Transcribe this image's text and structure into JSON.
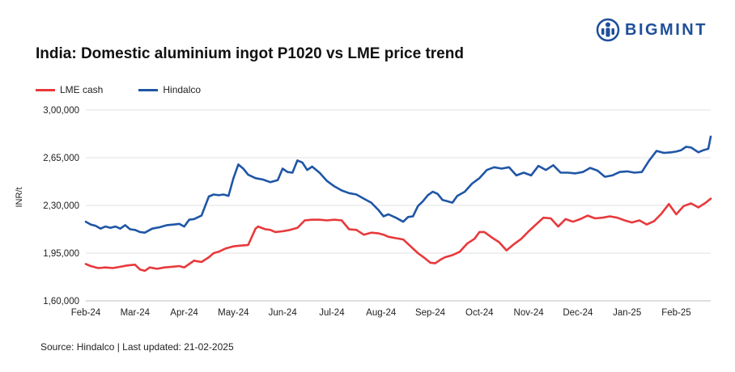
{
  "title": "India: Domestic aluminium ingot P1020 vs LME price trend",
  "brand": {
    "name": "BIGMINT",
    "logo_icon": "bigmint-logo-icon",
    "color": "#1f4f9a"
  },
  "source": "Source: Hindalco | Last updated: 21-02-2025",
  "legend": [
    {
      "label": "LME cash",
      "color": "#e8393c"
    },
    {
      "label": "Hindalco",
      "color": "#1f56a6"
    }
  ],
  "chart_data": {
    "type": "line",
    "title": "India: Domestic aluminium ingot P1020 vs LME price trend",
    "xlabel": "",
    "ylabel": "INR/t",
    "ylim": [
      160000,
      300000
    ],
    "yticks": [
      160000,
      195000,
      230000,
      265000,
      300000
    ],
    "ytick_labels": [
      "1,60,000",
      "1,95,000",
      "2,30,000",
      "2,65,000",
      "3,00,000"
    ],
    "xticks": [
      "Feb-24",
      "Mar-24",
      "Apr-24",
      "May-24",
      "Jun-24",
      "Jul-24",
      "Aug-24",
      "Sep-24",
      "Oct-24",
      "Nov-24",
      "Dec-24",
      "Jan-25",
      "Feb-25"
    ],
    "x_range_months": [
      0,
      12.7
    ],
    "grid": true,
    "legend_position": "top-left",
    "series": [
      {
        "name": "LME cash",
        "color": "#e8393c",
        "x": [
          0,
          0.1,
          0.25,
          0.4,
          0.55,
          0.7,
          0.85,
          1.0,
          1.1,
          1.2,
          1.3,
          1.45,
          1.6,
          1.75,
          1.9,
          2.0,
          2.1,
          2.2,
          2.35,
          2.5,
          2.6,
          2.7,
          2.85,
          3.0,
          3.15,
          3.3,
          3.45,
          3.5,
          3.65,
          3.75,
          3.85,
          4.0,
          4.15,
          4.3,
          4.45,
          4.6,
          4.75,
          4.9,
          5.05,
          5.2,
          5.35,
          5.5,
          5.65,
          5.8,
          5.95,
          6.05,
          6.15,
          6.3,
          6.45,
          6.6,
          6.75,
          6.9,
          7.0,
          7.1,
          7.2,
          7.3,
          7.45,
          7.6,
          7.75,
          7.9,
          8.0,
          8.1,
          8.25,
          8.4,
          8.55,
          8.7,
          8.85,
          9.0,
          9.15,
          9.3,
          9.45,
          9.6,
          9.75,
          9.9,
          10.05,
          10.2,
          10.35,
          10.5,
          10.65,
          10.8,
          10.95,
          11.1,
          11.25,
          11.4,
          11.55,
          11.7,
          11.85,
          12.0,
          12.15,
          12.3,
          12.45,
          12.6,
          12.7
        ],
        "values": [
          187000,
          185500,
          184000,
          184500,
          184000,
          185000,
          186000,
          186500,
          183000,
          182000,
          184500,
          183500,
          184500,
          185000,
          185500,
          184500,
          187000,
          189500,
          188500,
          192000,
          195000,
          196000,
          198500,
          200000,
          200500,
          201000,
          213000,
          214500,
          212500,
          212000,
          210500,
          211000,
          212000,
          213500,
          219000,
          219500,
          219500,
          219000,
          219500,
          219000,
          212500,
          212000,
          208500,
          210000,
          209500,
          208500,
          207000,
          206000,
          205000,
          200000,
          195000,
          191000,
          188000,
          187500,
          190000,
          192000,
          193500,
          196000,
          202000,
          205500,
          210500,
          210500,
          206500,
          203000,
          197000,
          201500,
          205500,
          211000,
          216000,
          221000,
          220500,
          214500,
          220000,
          218000,
          220000,
          222500,
          220500,
          221000,
          222000,
          221000,
          219000,
          217500,
          219000,
          216000,
          218500,
          224000,
          231000,
          223500,
          229500,
          231500,
          228500,
          232000,
          235000
        ]
      },
      {
        "name": "Hindalco",
        "color": "#1f56a6",
        "x": [
          0,
          0.1,
          0.2,
          0.3,
          0.4,
          0.5,
          0.6,
          0.7,
          0.8,
          0.9,
          1.0,
          1.1,
          1.2,
          1.35,
          1.5,
          1.65,
          1.8,
          1.9,
          2.0,
          2.1,
          2.2,
          2.35,
          2.5,
          2.6,
          2.7,
          2.8,
          2.9,
          3.0,
          3.1,
          3.2,
          3.3,
          3.45,
          3.6,
          3.75,
          3.9,
          4.0,
          4.1,
          4.2,
          4.3,
          4.4,
          4.5,
          4.6,
          4.75,
          4.9,
          5.05,
          5.2,
          5.35,
          5.5,
          5.65,
          5.8,
          5.95,
          6.05,
          6.15,
          6.3,
          6.45,
          6.55,
          6.65,
          6.75,
          6.85,
          6.95,
          7.05,
          7.15,
          7.25,
          7.35,
          7.45,
          7.55,
          7.7,
          7.85,
          8.0,
          8.15,
          8.3,
          8.45,
          8.6,
          8.75,
          8.9,
          9.05,
          9.2,
          9.35,
          9.5,
          9.65,
          9.8,
          9.95,
          10.1,
          10.25,
          10.4,
          10.55,
          10.7,
          10.85,
          11.0,
          11.15,
          11.3,
          11.45,
          11.6,
          11.75,
          11.9,
          12.0,
          12.1,
          12.2,
          12.3,
          12.45,
          12.55,
          12.65,
          12.7
        ],
        "values": [
          218000,
          216000,
          215000,
          213000,
          214500,
          213500,
          214500,
          213000,
          215500,
          212500,
          212000,
          210500,
          210000,
          213000,
          214000,
          215500,
          216000,
          216500,
          214500,
          219500,
          220000,
          222500,
          236500,
          238000,
          237500,
          238000,
          237000,
          250000,
          260000,
          257000,
          252500,
          250000,
          249000,
          247000,
          248500,
          257000,
          254500,
          254000,
          263000,
          261500,
          256000,
          258500,
          254000,
          248000,
          244000,
          241000,
          239000,
          238000,
          235000,
          232000,
          226500,
          222000,
          223500,
          221000,
          218000,
          221500,
          222000,
          229500,
          233000,
          237500,
          240000,
          238500,
          234000,
          233000,
          232000,
          237000,
          240000,
          246000,
          250000,
          256000,
          258000,
          257000,
          258000,
          252000,
          254000,
          252000,
          259000,
          256000,
          259500,
          254000,
          254000,
          253500,
          254500,
          257500,
          255500,
          251000,
          252000,
          254500,
          255000,
          254000,
          254500,
          263000,
          270000,
          268500,
          269000,
          269500,
          270500,
          273000,
          272500,
          269000,
          270500,
          271500,
          280500
        ]
      }
    ]
  }
}
